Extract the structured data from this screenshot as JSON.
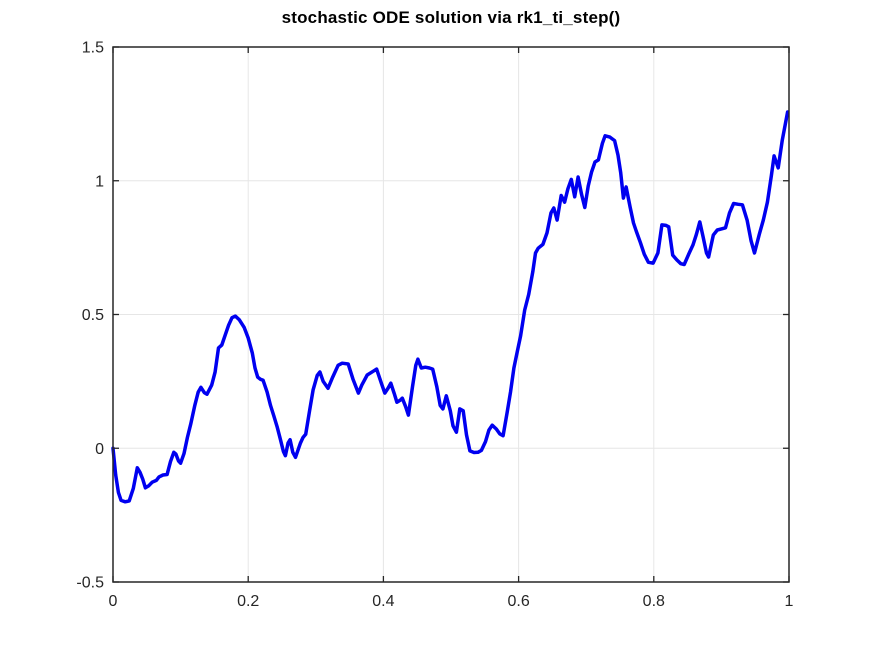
{
  "figure": {
    "background": "#ffffff"
  },
  "chart_data": {
    "type": "line",
    "title": "stochastic ODE solution via rk1_ti_step()",
    "xlabel": "",
    "ylabel": "",
    "xlim": [
      0,
      1
    ],
    "ylim": [
      -0.5,
      1.5
    ],
    "x_ticks": [
      0,
      0.2,
      0.4,
      0.6,
      0.8,
      1
    ],
    "x_tick_labels": [
      "0",
      "0.2",
      "0.4",
      "0.6",
      "0.8",
      "1"
    ],
    "y_ticks": [
      -0.5,
      0,
      0.5,
      1,
      1.5
    ],
    "y_tick_labels": [
      "-0.5",
      "0",
      "0.5",
      "1",
      "1.5"
    ],
    "grid": true,
    "legend_position": "none",
    "axis_color": "#262626",
    "grid_color": "#e6e6e6",
    "tick_label_color": "#262626",
    "series": [
      {
        "name": "solution",
        "color": "#0000f0",
        "line_width": 3.5,
        "x": [
          0,
          0.004,
          0.008,
          0.012,
          0.018,
          0.024,
          0.03,
          0.036,
          0.04,
          0.044,
          0.048,
          0.053,
          0.058,
          0.064,
          0.068,
          0.074,
          0.08,
          0.085,
          0.09,
          0.093,
          0.097,
          0.1,
          0.105,
          0.11,
          0.115,
          0.121,
          0.126,
          0.13,
          0.135,
          0.139,
          0.146,
          0.151,
          0.156,
          0.161,
          0.166,
          0.171,
          0.176,
          0.181,
          0.187,
          0.194,
          0.2,
          0.206,
          0.21,
          0.214,
          0.218,
          0.222,
          0.228,
          0.233,
          0.238,
          0.243,
          0.248,
          0.252,
          0.255,
          0.259,
          0.262,
          0.266,
          0.27,
          0.277,
          0.281,
          0.285,
          0.291,
          0.296,
          0.302,
          0.306,
          0.311,
          0.318,
          0.325,
          0.333,
          0.339,
          0.348,
          0.355,
          0.363,
          0.368,
          0.376,
          0.385,
          0.39,
          0.398,
          0.402,
          0.407,
          0.411,
          0.416,
          0.42,
          0.425,
          0.428,
          0.433,
          0.437,
          0.443,
          0.448,
          0.451,
          0.456,
          0.462,
          0.468,
          0.473,
          0.479,
          0.484,
          0.488,
          0.493,
          0.499,
          0.503,
          0.508,
          0.513,
          0.518,
          0.523,
          0.528,
          0.534,
          0.54,
          0.545,
          0.551,
          0.556,
          0.561,
          0.567,
          0.572,
          0.577,
          0.583,
          0.588,
          0.593,
          0.598,
          0.603,
          0.609,
          0.615,
          0.621,
          0.625,
          0.629,
          0.636,
          0.642,
          0.648,
          0.652,
          0.657,
          0.663,
          0.668,
          0.673,
          0.678,
          0.683,
          0.688,
          0.693,
          0.698,
          0.703,
          0.708,
          0.713,
          0.718,
          0.724,
          0.728,
          0.735,
          0.742,
          0.747,
          0.751,
          0.755,
          0.759,
          0.765,
          0.77,
          0.774,
          0.78,
          0.786,
          0.792,
          0.799,
          0.806,
          0.812,
          0.818,
          0.822,
          0.828,
          0.834,
          0.84,
          0.845,
          0.852,
          0.858,
          0.863,
          0.868,
          0.873,
          0.878,
          0.881,
          0.888,
          0.894,
          0.9,
          0.906,
          0.912,
          0.918,
          0.925,
          0.931,
          0.938,
          0.944,
          0.949,
          0.956,
          0.962,
          0.968,
          0.974,
          0.978,
          0.984,
          0.99,
          0.998
        ],
        "y": [
          0,
          -0.1,
          -0.165,
          -0.195,
          -0.2,
          -0.197,
          -0.15,
          -0.073,
          -0.09,
          -0.115,
          -0.148,
          -0.14,
          -0.127,
          -0.12,
          -0.107,
          -0.1,
          -0.098,
          -0.05,
          -0.015,
          -0.022,
          -0.048,
          -0.056,
          -0.02,
          0.04,
          0.09,
          0.16,
          0.21,
          0.228,
          0.208,
          0.202,
          0.236,
          0.285,
          0.375,
          0.386,
          0.423,
          0.46,
          0.488,
          0.494,
          0.48,
          0.452,
          0.412,
          0.356,
          0.3,
          0.266,
          0.258,
          0.254,
          0.21,
          0.16,
          0.12,
          0.078,
          0.03,
          -0.012,
          -0.028,
          0.02,
          0.032,
          -0.015,
          -0.034,
          0.018,
          0.04,
          0.052,
          0.143,
          0.218,
          0.272,
          0.285,
          0.25,
          0.224,
          0.266,
          0.31,
          0.318,
          0.315,
          0.258,
          0.206,
          0.236,
          0.274,
          0.288,
          0.296,
          0.236,
          0.206,
          0.225,
          0.243,
          0.205,
          0.172,
          0.18,
          0.187,
          0.155,
          0.124,
          0.23,
          0.31,
          0.333,
          0.3,
          0.303,
          0.3,
          0.296,
          0.23,
          0.16,
          0.147,
          0.196,
          0.14,
          0.084,
          0.06,
          0.147,
          0.14,
          0.05,
          -0.01,
          -0.016,
          -0.015,
          -0.008,
          0.025,
          0.068,
          0.086,
          0.072,
          0.054,
          0.047,
          0.133,
          0.21,
          0.3,
          0.36,
          0.42,
          0.517,
          0.575,
          0.66,
          0.73,
          0.748,
          0.762,
          0.805,
          0.88,
          0.898,
          0.853,
          0.945,
          0.92,
          0.97,
          1.005,
          0.94,
          1.014,
          0.95,
          0.9,
          0.98,
          1.033,
          1.07,
          1.078,
          1.14,
          1.168,
          1.163,
          1.15,
          1.096,
          1.03,
          0.935,
          0.977,
          0.902,
          0.842,
          0.812,
          0.77,
          0.725,
          0.695,
          0.692,
          0.73,
          0.835,
          0.833,
          0.828,
          0.722,
          0.704,
          0.69,
          0.687,
          0.728,
          0.76,
          0.8,
          0.846,
          0.79,
          0.73,
          0.715,
          0.797,
          0.816,
          0.82,
          0.824,
          0.88,
          0.915,
          0.912,
          0.91,
          0.853,
          0.775,
          0.73,
          0.8,
          0.853,
          0.92,
          1.02,
          1.093,
          1.048,
          1.15,
          1.257
        ]
      }
    ]
  }
}
